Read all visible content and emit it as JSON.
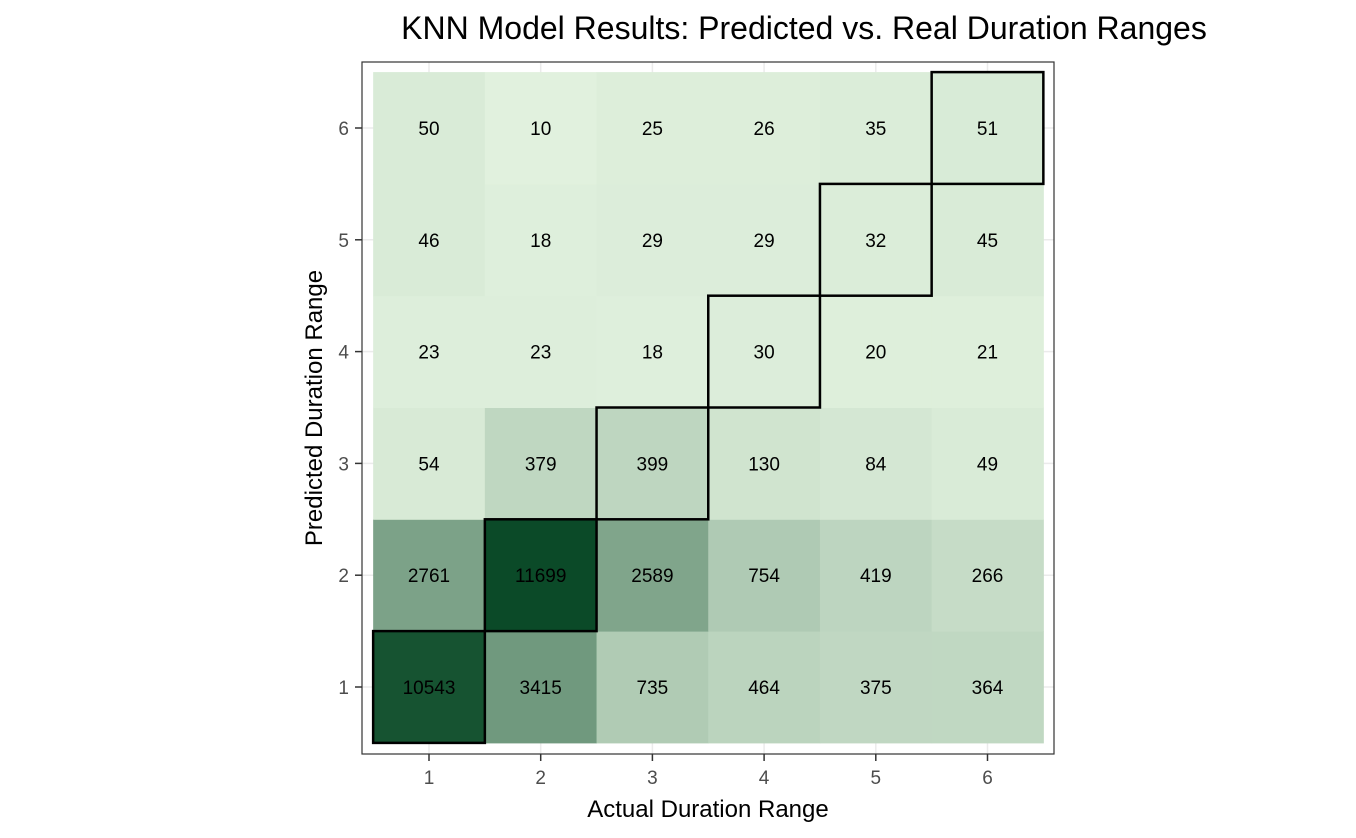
{
  "chart_data": {
    "type": "heatmap",
    "title": "KNN Model Results: Predicted vs. Real Duration Ranges",
    "xlabel": "Actual Duration Range",
    "ylabel": "Predicted Duration Range",
    "x_categories": [
      "1",
      "2",
      "3",
      "4",
      "5",
      "6"
    ],
    "y_categories": [
      "1",
      "2",
      "3",
      "4",
      "5",
      "6"
    ],
    "grid": true,
    "legend": "none",
    "color_scale": {
      "low": "#e7f6e3",
      "high": "#0b4a28",
      "max_value": 11699
    },
    "cells": [
      {
        "x": "1",
        "y": "1",
        "value": 10543,
        "highlight": true
      },
      {
        "x": "2",
        "y": "1",
        "value": 3415
      },
      {
        "x": "3",
        "y": "1",
        "value": 735
      },
      {
        "x": "4",
        "y": "1",
        "value": 464
      },
      {
        "x": "5",
        "y": "1",
        "value": 375
      },
      {
        "x": "6",
        "y": "1",
        "value": 364
      },
      {
        "x": "1",
        "y": "2",
        "value": 2761
      },
      {
        "x": "2",
        "y": "2",
        "value": 11699,
        "highlight": true
      },
      {
        "x": "3",
        "y": "2",
        "value": 2589
      },
      {
        "x": "4",
        "y": "2",
        "value": 754
      },
      {
        "x": "5",
        "y": "2",
        "value": 419
      },
      {
        "x": "6",
        "y": "2",
        "value": 266
      },
      {
        "x": "1",
        "y": "3",
        "value": 54
      },
      {
        "x": "2",
        "y": "3",
        "value": 379
      },
      {
        "x": "3",
        "y": "3",
        "value": 399,
        "highlight": true
      },
      {
        "x": "4",
        "y": "3",
        "value": 130
      },
      {
        "x": "5",
        "y": "3",
        "value": 84
      },
      {
        "x": "6",
        "y": "3",
        "value": 49
      },
      {
        "x": "1",
        "y": "4",
        "value": 23
      },
      {
        "x": "2",
        "y": "4",
        "value": 23
      },
      {
        "x": "3",
        "y": "4",
        "value": 18
      },
      {
        "x": "4",
        "y": "4",
        "value": 30,
        "highlight": true
      },
      {
        "x": "5",
        "y": "4",
        "value": 20
      },
      {
        "x": "6",
        "y": "4",
        "value": 21
      },
      {
        "x": "1",
        "y": "5",
        "value": 46
      },
      {
        "x": "2",
        "y": "5",
        "value": 18
      },
      {
        "x": "3",
        "y": "5",
        "value": 29
      },
      {
        "x": "4",
        "y": "5",
        "value": 29
      },
      {
        "x": "5",
        "y": "5",
        "value": 32,
        "highlight": true
      },
      {
        "x": "6",
        "y": "5",
        "value": 45
      },
      {
        "x": "1",
        "y": "6",
        "value": 50
      },
      {
        "x": "2",
        "y": "6",
        "value": 10
      },
      {
        "x": "3",
        "y": "6",
        "value": 25
      },
      {
        "x": "4",
        "y": "6",
        "value": 26
      },
      {
        "x": "5",
        "y": "6",
        "value": 35
      },
      {
        "x": "6",
        "y": "6",
        "value": 51,
        "highlight": true
      }
    ]
  }
}
